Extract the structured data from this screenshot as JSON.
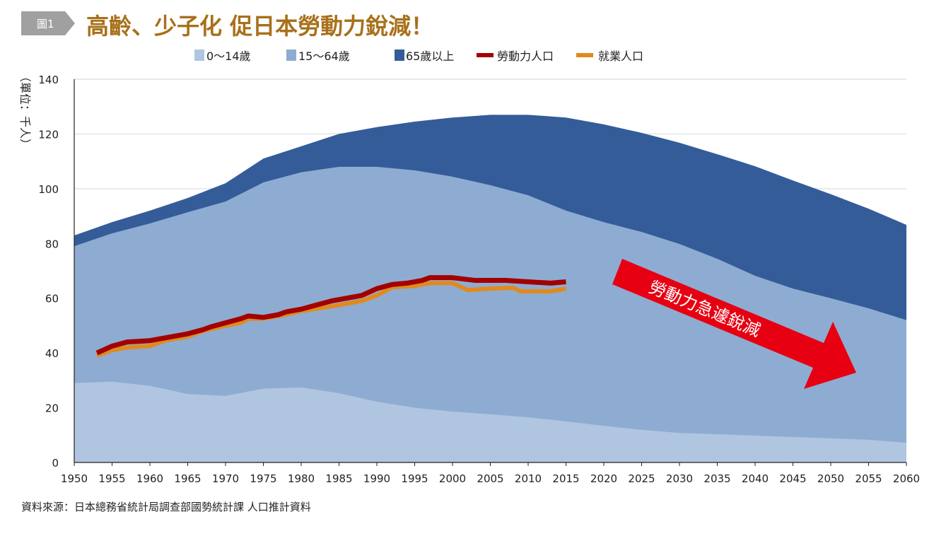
{
  "figure_label": "圖1",
  "title": "高齡、少子化 促日本勞動力銳減！",
  "source": "資料來源：日本總務省統計局調查部國勢統計課 人口推計資料",
  "annotation": "勞動力急遽銳減",
  "colors": {
    "age0_14": "#b0c5e0",
    "age15_64": "#8eacd2",
    "age65": "#345c99",
    "labor": "#a30000",
    "employed": "#e08a1e",
    "arrow": "#e60012",
    "title": "#a8701a"
  },
  "chart_data": {
    "type": "area",
    "title": "高齡、少子化 促日本勞動力銳減！",
    "ylabel": "（單位：千人）",
    "xlabel": "",
    "xlim": [
      1950,
      2060
    ],
    "ylim": [
      0,
      140
    ],
    "yticks": [
      0,
      20,
      40,
      60,
      80,
      100,
      120,
      140
    ],
    "xticks": [
      1950,
      1955,
      1960,
      1965,
      1970,
      1975,
      1980,
      1985,
      1990,
      1995,
      2000,
      2005,
      2010,
      2015,
      2020,
      2025,
      2030,
      2035,
      2040,
      2045,
      2050,
      2055,
      2060
    ],
    "grid": true,
    "legend_position": "top",
    "stacked_series_note": "cumulative tops",
    "x": [
      1950,
      1955,
      1960,
      1965,
      1970,
      1975,
      1980,
      1985,
      1990,
      1995,
      2000,
      2005,
      2010,
      2015,
      2020,
      2025,
      2030,
      2035,
      2040,
      2045,
      2050,
      2055,
      2060
    ],
    "series": [
      {
        "name": "0～14歲",
        "values": [
          29,
          29.5,
          28,
          25,
          24.3,
          27,
          27.4,
          25.3,
          22.2,
          20,
          18.6,
          17.6,
          16.5,
          15,
          13.4,
          11.9,
          10.8,
          10.3,
          9.8,
          9.3,
          8.8,
          8.3,
          7.2
        ]
      },
      {
        "name": "15～64歲",
        "values": [
          79,
          83.7,
          87.3,
          91.4,
          95.3,
          102.3,
          106,
          108,
          108,
          106.7,
          104.4,
          101.3,
          97.6,
          92,
          87.8,
          84.2,
          79.8,
          74.4,
          68.2,
          63.5,
          60,
          56.3,
          52
        ]
      },
      {
        "name": "65歲以上",
        "values": [
          82.9,
          87.8,
          92,
          96.6,
          102,
          111,
          115.5,
          120,
          122.5,
          124.5,
          126,
          127,
          127,
          126,
          123.5,
          120.4,
          116.8,
          112.6,
          108.2,
          103,
          98,
          92.7,
          86.8
        ]
      }
    ],
    "lines": [
      {
        "name": "勞動力人口",
        "x": [
          1953,
          1955,
          1957,
          1960,
          1962,
          1965,
          1967,
          1968,
          1970,
          1972,
          1973,
          1975,
          1977,
          1978,
          1980,
          1982,
          1984,
          1986,
          1988,
          1990,
          1992,
          1994,
          1996,
          1997,
          2000,
          2003,
          2005,
          2007,
          2010,
          2013,
          2015
        ],
        "values": [
          40,
          42.5,
          44,
          44.5,
          45.5,
          47,
          48.5,
          49.5,
          51,
          52.5,
          53.5,
          53,
          54,
          55,
          56,
          57.5,
          59,
          60,
          61,
          63.5,
          65,
          65.5,
          66.5,
          67.5,
          67.5,
          66.5,
          66.5,
          66.5,
          66,
          65.5,
          66
        ]
      },
      {
        "name": "就業人口",
        "x": [
          1953,
          1955,
          1957,
          1960,
          1962,
          1965,
          1967,
          1970,
          1972,
          1973,
          1975,
          1978,
          1980,
          1984,
          1986,
          1988,
          1990,
          1992,
          1995,
          1997,
          2000,
          2002,
          2005,
          2008,
          2009,
          2013,
          2015
        ],
        "values": [
          39,
          41,
          42,
          42.5,
          44.5,
          46,
          48,
          50,
          51,
          52.5,
          52.5,
          54,
          55.3,
          57,
          58,
          59,
          61,
          64,
          64.5,
          65.5,
          65.5,
          63,
          63.5,
          63.8,
          62.5,
          62.5,
          63.5
        ]
      }
    ]
  }
}
